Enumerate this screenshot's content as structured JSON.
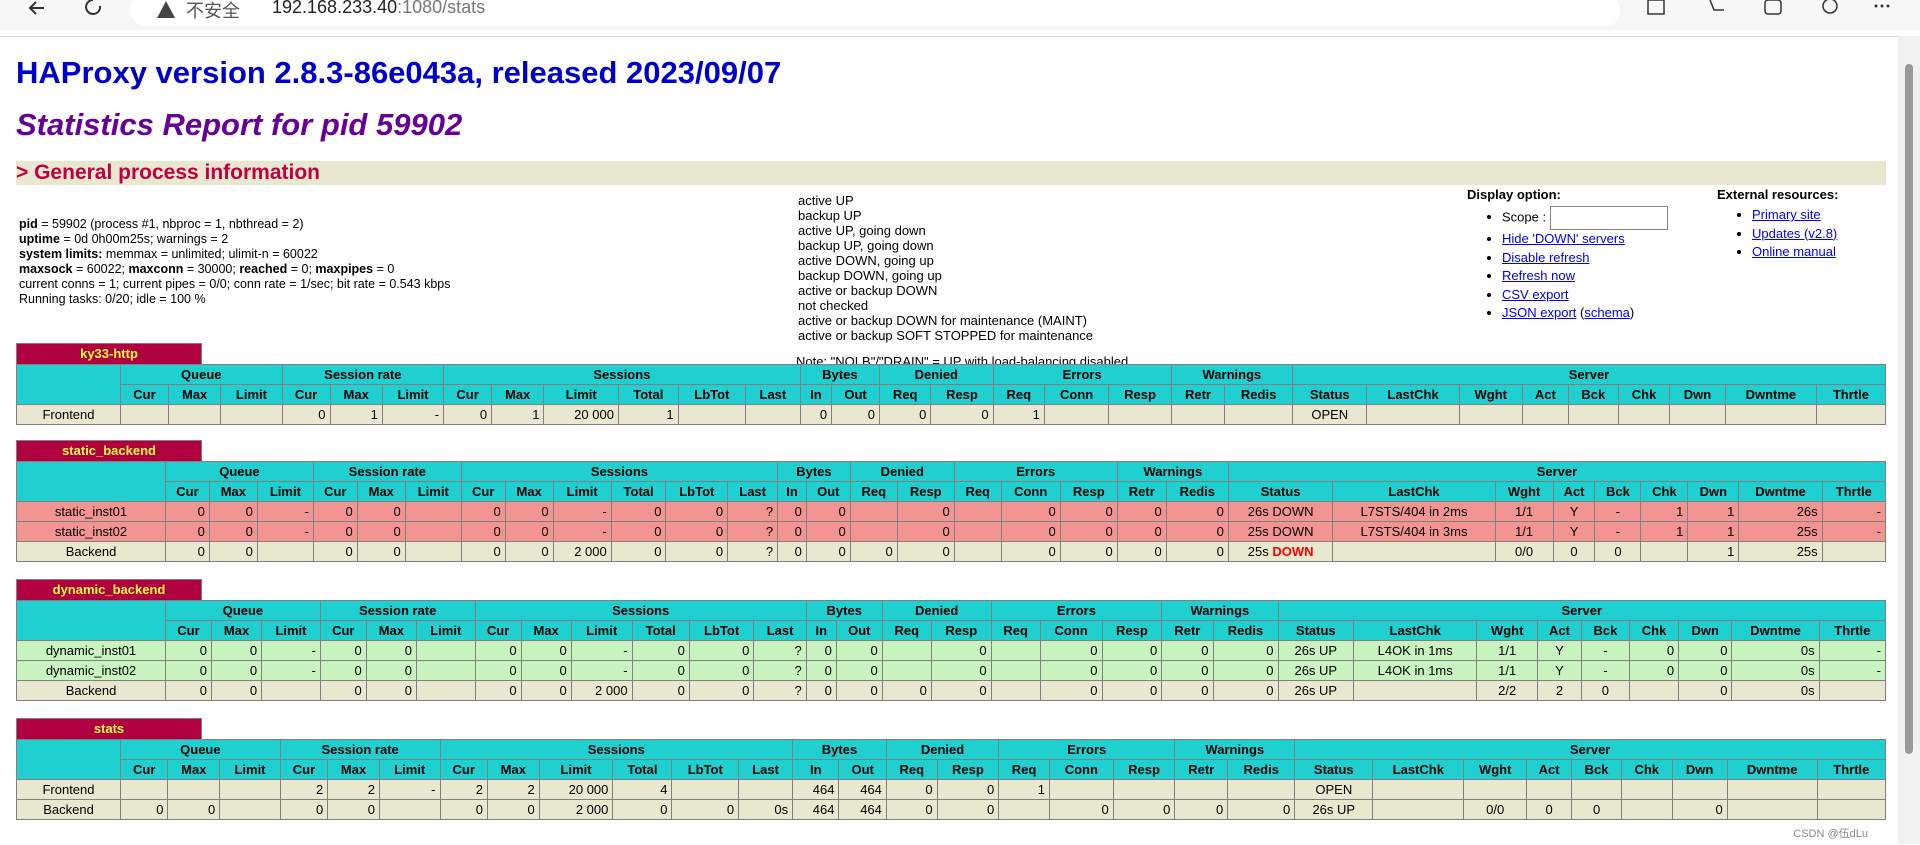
{
  "browser": {
    "warning": "不安全",
    "host": "192.168.233.40",
    "path": ":1080/stats"
  },
  "header": {
    "title": "HAProxy version 2.8.3-86e043a, released 2023/09/07",
    "subtitle": "Statistics Report for pid 59902",
    "section": "> General process information"
  },
  "process_info": {
    "lines": [
      [
        {
          "b": "pid"
        },
        {
          "t": " = 59902 (process #1, nbproc = 1, nbthread = 2)"
        }
      ],
      [
        {
          "b": "uptime"
        },
        {
          "t": " = 0d 0h00m25s; warnings = 2"
        }
      ],
      [
        {
          "b": "system limits:"
        },
        {
          "t": " memmax = unlimited; ulimit-n = 60022"
        }
      ],
      [
        {
          "b": "maxsock"
        },
        {
          "t": " = 60022; "
        },
        {
          "b": "maxconn"
        },
        {
          "t": " = 30000; "
        },
        {
          "b": "reached"
        },
        {
          "t": " = 0; "
        },
        {
          "b": "maxpipes"
        },
        {
          "t": " = 0"
        }
      ],
      [
        {
          "t": "current conns = 1; current pipes = 0/0; conn rate = 1/sec; bit rate = 0.543 kbps"
        }
      ],
      [
        {
          "t": "Running tasks: 0/20; idle = 100 %"
        }
      ]
    ]
  },
  "legend": {
    "items": [
      {
        "color": "#c0ffc0",
        "label": "active UP"
      },
      {
        "color": "#b0d0ff",
        "label": "backup UP"
      },
      {
        "color": "#ffffa0",
        "label": "active UP, going down"
      },
      {
        "color": "#c060ff",
        "label": "backup UP, going down"
      },
      {
        "color": "#ffd020",
        "label": "active DOWN, going up"
      },
      {
        "color": "#ff80ff",
        "label": "backup DOWN, going up"
      },
      {
        "color": "#ff9090",
        "label": "active or backup DOWN"
      },
      {
        "color": "#e0e0e0",
        "label": "not checked"
      },
      {
        "color": "#c07820",
        "label": "active or backup DOWN for maintenance (MAINT)"
      },
      {
        "color": "#3399ee",
        "label": "active or backup SOFT STOPPED for maintenance"
      }
    ],
    "note": "Note: \"NOLB\"/\"DRAIN\" = UP with load-balancing disabled."
  },
  "display_options": {
    "title": "Display option:",
    "scope": "Scope :",
    "links": [
      [
        {
          "a": "Hide 'DOWN' servers"
        }
      ],
      [
        {
          "a": "Disable refresh"
        }
      ],
      [
        {
          "a": "Refresh now"
        }
      ],
      [
        {
          "a": "CSV export"
        }
      ],
      [
        {
          "a": "JSON export"
        },
        {
          "t": " ("
        },
        {
          "a": "schema"
        },
        {
          "t": ")"
        }
      ]
    ]
  },
  "external": {
    "title": "External resources:",
    "links": [
      "Primary site",
      "Updates (v2.8)",
      "Online manual"
    ]
  },
  "stats": {
    "state_colors": {
      "frontend": "#e8e8d0",
      "backend": "#e8e8d0",
      "down": "#f29592",
      "up": "#c8f2c0"
    },
    "groups": [
      {
        "name": "Queue",
        "columns": [
          "Cur",
          "Max",
          "Limit"
        ]
      },
      {
        "name": "Session rate",
        "columns": [
          "Cur",
          "Max",
          "Limit"
        ]
      },
      {
        "name": "Sessions",
        "columns": [
          "Cur",
          "Max",
          "Limit",
          "Total",
          "LbTot",
          "Last"
        ]
      },
      {
        "name": "Bytes",
        "columns": [
          "In",
          "Out"
        ]
      },
      {
        "name": "Denied",
        "columns": [
          "Req",
          "Resp"
        ]
      },
      {
        "name": "Errors",
        "columns": [
          "Req",
          "Conn",
          "Resp"
        ]
      },
      {
        "name": "Warnings",
        "columns": [
          "Retr",
          "Redis"
        ]
      },
      {
        "name": "Server",
        "columns": [
          "Status",
          "LastChk",
          "Wght",
          "Act",
          "Bck",
          "Chk",
          "Dwn",
          "Dwntme",
          "Thrtle"
        ]
      }
    ],
    "proxies": [
      {
        "name": "ky33-http",
        "rows": [
          {
            "name": "Frontend",
            "state": "frontend",
            "cells": [
              null,
              null,
              null,
              "0",
              "1",
              "-",
              "0",
              "1",
              "20 000",
              "1",
              null,
              null,
              "0",
              "0",
              "0",
              "0",
              "1",
              null,
              null,
              null,
              null,
              "OPEN",
              null,
              null,
              null,
              null,
              null,
              null,
              null,
              null
            ]
          }
        ]
      },
      {
        "name": "static_backend",
        "rows": [
          {
            "name": "static_inst01",
            "state": "down",
            "cells": [
              "0",
              "0",
              "-",
              "0",
              "0",
              null,
              "0",
              "0",
              "-",
              "0",
              "0",
              "?",
              "0",
              "0",
              null,
              "0",
              null,
              "0",
              "0",
              "0",
              "0",
              "26s DOWN",
              "L7STS/404 in 2ms",
              "1/1",
              "Y",
              "-",
              "1",
              "1",
              "26s",
              "-"
            ]
          },
          {
            "name": "static_inst02",
            "state": "down",
            "cells": [
              "0",
              "0",
              "-",
              "0",
              "0",
              null,
              "0",
              "0",
              "-",
              "0",
              "0",
              "?",
              "0",
              "0",
              null,
              "0",
              null,
              "0",
              "0",
              "0",
              "0",
              "25s DOWN",
              "L7STS/404 in 3ms",
              "1/1",
              "Y",
              "-",
              "1",
              "1",
              "25s",
              "-"
            ]
          },
          {
            "name": "Backend",
            "state": "backend",
            "cells": [
              "0",
              "0",
              null,
              "0",
              "0",
              null,
              "0",
              "0",
              "2 000",
              "0",
              "0",
              "?",
              "0",
              "0",
              "0",
              "0",
              null,
              "0",
              "0",
              "0",
              "0",
              {
                "text": "25s ",
                "alert": "DOWN"
              },
              null,
              "0/0",
              "0",
              "0",
              null,
              "1",
              "25s",
              null
            ]
          }
        ]
      },
      {
        "name": "dynamic_backend",
        "rows": [
          {
            "name": "dynamic_inst01",
            "state": "up",
            "cells": [
              "0",
              "0",
              "-",
              "0",
              "0",
              null,
              "0",
              "0",
              "-",
              "0",
              "0",
              "?",
              "0",
              "0",
              null,
              "0",
              null,
              "0",
              "0",
              "0",
              "0",
              "26s UP",
              "L4OK in 1ms",
              "1/1",
              "Y",
              "-",
              "0",
              "0",
              "0s",
              "-"
            ]
          },
          {
            "name": "dynamic_inst02",
            "state": "up",
            "cells": [
              "0",
              "0",
              "-",
              "0",
              "0",
              null,
              "0",
              "0",
              "-",
              "0",
              "0",
              "?",
              "0",
              "0",
              null,
              "0",
              null,
              "0",
              "0",
              "0",
              "0",
              "26s UP",
              "L4OK in 1ms",
              "1/1",
              "Y",
              "-",
              "0",
              "0",
              "0s",
              "-"
            ]
          },
          {
            "name": "Backend",
            "state": "backend",
            "cells": [
              "0",
              "0",
              null,
              "0",
              "0",
              null,
              "0",
              "0",
              "2 000",
              "0",
              "0",
              "?",
              "0",
              "0",
              "0",
              "0",
              null,
              "0",
              "0",
              "0",
              "0",
              "26s UP",
              null,
              "2/2",
              "2",
              "0",
              null,
              "0",
              "0s",
              null
            ]
          }
        ]
      },
      {
        "name": "stats",
        "rows": [
          {
            "name": "Frontend",
            "state": "frontend",
            "cells": [
              null,
              null,
              null,
              "2",
              "2",
              "-",
              "2",
              "2",
              "20 000",
              "4",
              null,
              null,
              "464",
              "464",
              "0",
              "0",
              "1",
              null,
              null,
              null,
              null,
              "OPEN",
              null,
              null,
              null,
              null,
              null,
              null,
              null,
              null
            ]
          },
          {
            "name": "Backend",
            "state": "backend",
            "cells": [
              "0",
              "0",
              null,
              "0",
              "0",
              null,
              "0",
              "0",
              "2 000",
              "0",
              "0",
              "0s",
              "464",
              "464",
              "0",
              "0",
              null,
              "0",
              "0",
              "0",
              "0",
              "26s UP",
              null,
              "0/0",
              "0",
              "0",
              null,
              "0",
              null,
              null
            ]
          }
        ]
      }
    ]
  },
  "watermark": "CSDN @伍dLu"
}
